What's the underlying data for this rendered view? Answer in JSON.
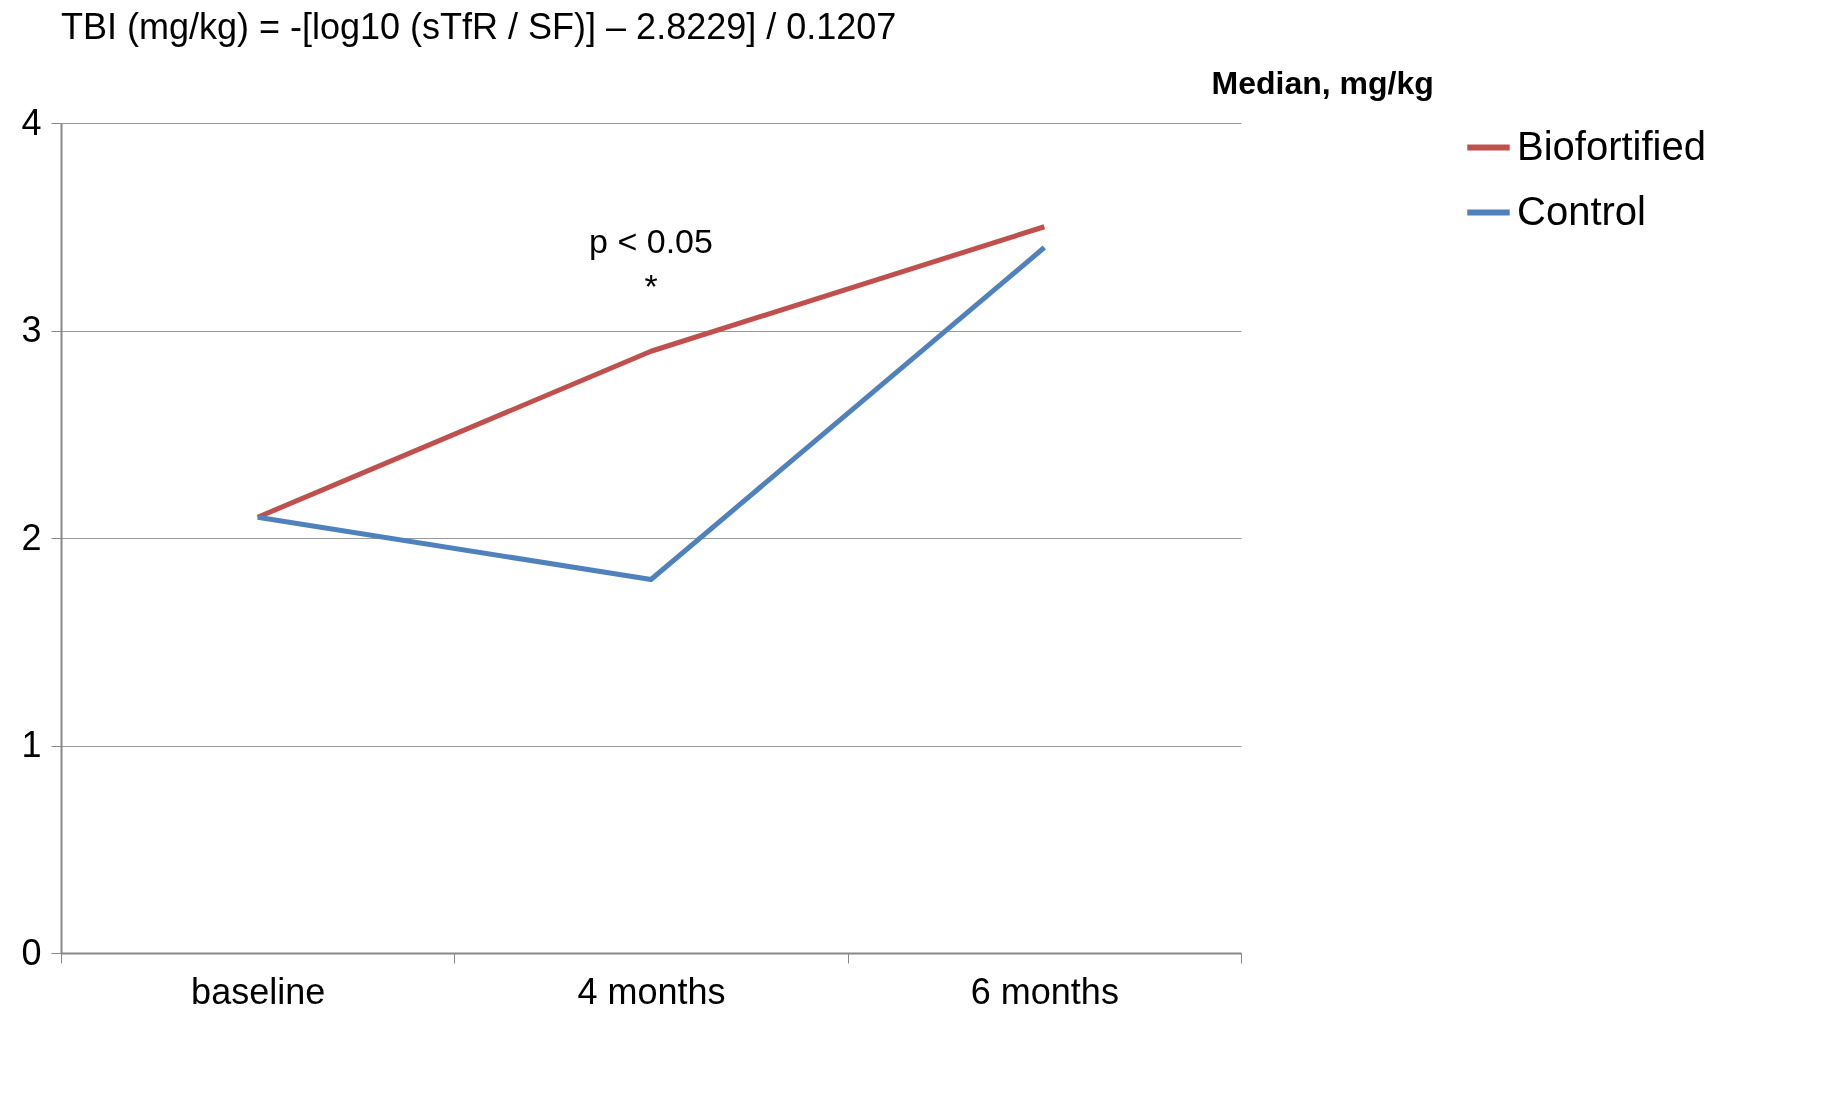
{
  "chart_data": {
    "type": "line",
    "title": "TBI (mg/kg) = -[log10 (sTfR / SF)] – 2.8229] / 0.1207",
    "ylabel": "Median, mg/kg",
    "categories": [
      "baseline",
      "4 months",
      "6 months"
    ],
    "series": [
      {
        "name": "Biofortified",
        "color": "#c0504d",
        "values": [
          2.1,
          2.9,
          3.5
        ]
      },
      {
        "name": "Control",
        "color": "#4f81bd",
        "values": [
          2.1,
          1.8,
          3.4
        ]
      }
    ],
    "ylim": [
      0,
      4
    ],
    "yticks": [
      0,
      1,
      2,
      3,
      4
    ],
    "grid": "y",
    "legend": "right",
    "marker": "none",
    "line_style": "solid",
    "annotations": [
      "p < 0.05",
      "*"
    ]
  }
}
